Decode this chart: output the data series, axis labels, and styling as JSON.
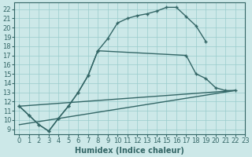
{
  "xlabel": "Humidex (Indice chaleur)",
  "background_color": "#cce8e8",
  "grid_color": "#99cccc",
  "line_color": "#336666",
  "xlim": [
    -0.5,
    23
  ],
  "ylim": [
    8.5,
    22.7
  ],
  "xticks": [
    0,
    1,
    2,
    3,
    4,
    5,
    6,
    7,
    8,
    9,
    10,
    11,
    12,
    13,
    14,
    15,
    16,
    17,
    18,
    19,
    20,
    21,
    22,
    23
  ],
  "yticks": [
    9,
    10,
    11,
    12,
    13,
    14,
    15,
    16,
    17,
    18,
    19,
    20,
    21,
    22
  ],
  "line1_x": [
    0,
    1,
    2,
    3,
    4,
    5,
    6,
    7,
    8,
    9,
    10,
    11,
    12,
    13,
    14,
    15,
    16,
    17,
    18,
    19
  ],
  "line1_y": [
    11.5,
    10.5,
    9.5,
    8.8,
    10.2,
    11.5,
    13.0,
    14.8,
    17.5,
    18.8,
    20.5,
    21.0,
    21.3,
    21.5,
    21.8,
    22.2,
    22.2,
    21.2,
    20.2,
    18.5
  ],
  "line2_x": [
    0,
    1,
    2,
    3,
    4,
    5,
    6,
    7,
    8,
    17,
    18,
    19,
    20,
    21,
    22
  ],
  "line2_y": [
    11.5,
    10.5,
    9.5,
    8.8,
    10.2,
    11.5,
    13.0,
    14.8,
    17.5,
    17.0,
    15.0,
    14.5,
    13.5,
    13.2,
    13.2
  ],
  "line3_x": [
    0,
    22
  ],
  "line3_y": [
    11.5,
    13.2
  ],
  "line4_x": [
    0,
    22
  ],
  "line4_y": [
    9.5,
    13.2
  ],
  "line_width": 1.0,
  "marker_size": 2.5,
  "font_size": 6
}
